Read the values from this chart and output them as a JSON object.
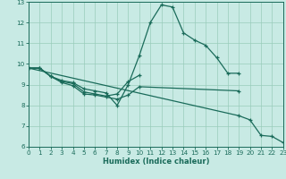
{
  "xlabel": "Humidex (Indice chaleur)",
  "xlim": [
    0,
    23
  ],
  "ylim": [
    6,
    13
  ],
  "yticks": [
    6,
    7,
    8,
    9,
    10,
    11,
    12,
    13
  ],
  "xticks": [
    0,
    1,
    2,
    3,
    4,
    5,
    6,
    7,
    8,
    9,
    10,
    11,
    12,
    13,
    14,
    15,
    16,
    17,
    18,
    19,
    20,
    21,
    22,
    23
  ],
  "bg_color": "#c8eae4",
  "grid_color": "#99ccbb",
  "line_color": "#1a6b5a",
  "curve1_x": [
    0,
    1,
    2,
    3,
    4,
    5,
    6,
    7,
    8,
    9,
    10,
    11,
    12,
    13,
    14,
    15,
    16,
    17,
    18,
    19
  ],
  "curve1_y": [
    9.8,
    9.8,
    9.4,
    9.2,
    9.1,
    8.8,
    8.7,
    8.6,
    8.0,
    9.0,
    10.4,
    12.0,
    12.85,
    12.75,
    11.5,
    11.15,
    10.9,
    10.3,
    9.55,
    9.55
  ],
  "curve2_x": [
    0,
    1,
    2,
    3,
    4,
    5,
    6,
    7,
    8,
    9,
    10
  ],
  "curve2_y": [
    9.8,
    9.8,
    9.4,
    9.15,
    9.05,
    8.65,
    8.55,
    8.45,
    8.55,
    9.15,
    9.45
  ],
  "curve3_x": [
    0,
    1,
    2,
    3,
    4,
    5,
    6,
    7,
    8,
    9,
    10,
    19
  ],
  "curve3_y": [
    9.8,
    9.8,
    9.4,
    9.1,
    8.95,
    8.55,
    8.5,
    8.4,
    8.3,
    8.5,
    8.9,
    8.7
  ],
  "line4_x": [
    0,
    19,
    20,
    21,
    22,
    23
  ],
  "line4_y": [
    9.8,
    7.5,
    7.3,
    6.55,
    6.5,
    6.2
  ]
}
